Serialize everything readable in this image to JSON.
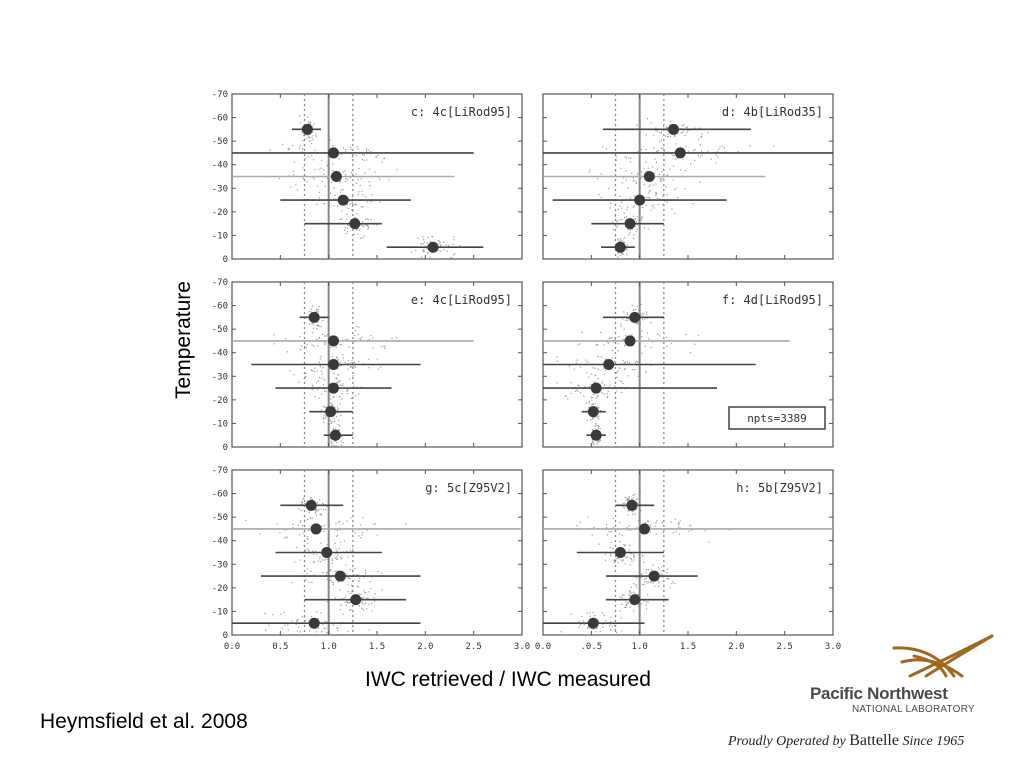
{
  "chart_data": {
    "type": "scatter",
    "ylabel": "Temperature",
    "xlabel": "IWC retrieved / IWC measured",
    "xlim": [
      0.0,
      3.0
    ],
    "ylim": [
      0,
      -70
    ],
    "x_ticks": [
      "0.0",
      "0.5",
      "1.0",
      "1.5",
      "2.0",
      "2.5",
      "3.0"
    ],
    "x_ticks_right": [
      "0.0",
      ".0.5",
      "1.0",
      "1.5",
      "2.0",
      "2.5",
      "3.0"
    ],
    "y_ticks": [
      "0",
      "-10",
      "-20",
      "-30",
      "-40",
      "-50",
      "-60",
      "-70"
    ],
    "reference_lines": {
      "solid_x": 1.0,
      "dotted_x": [
        0.75,
        1.25
      ]
    },
    "panels": [
      {
        "label": "c: 4c[LiRod95]",
        "points": [
          {
            "t": -55,
            "x": 0.78,
            "lo": 0.62,
            "hi": 0.92
          },
          {
            "t": -45,
            "x": 1.05,
            "lo": 0.0,
            "hi": 2.5
          },
          {
            "t": -35,
            "x": 1.08,
            "lo": 0.0,
            "hi": 2.3,
            "light": true
          },
          {
            "t": -25,
            "x": 1.15,
            "lo": 0.5,
            "hi": 1.85
          },
          {
            "t": -15,
            "x": 1.27,
            "lo": 0.75,
            "hi": 1.55
          },
          {
            "t": -5,
            "x": 2.08,
            "lo": 1.6,
            "hi": 2.6
          }
        ]
      },
      {
        "label": "d: 4b[LiRod35]",
        "points": [
          {
            "t": -55,
            "x": 1.35,
            "lo": 0.62,
            "hi": 2.15
          },
          {
            "t": -45,
            "x": 1.42,
            "lo": 0.0,
            "hi": 3.0
          },
          {
            "t": -35,
            "x": 1.1,
            "lo": 0.0,
            "hi": 2.3,
            "light": true
          },
          {
            "t": -25,
            "x": 1.0,
            "lo": 0.1,
            "hi": 1.9
          },
          {
            "t": -15,
            "x": 0.9,
            "lo": 0.5,
            "hi": 1.25
          },
          {
            "t": -5,
            "x": 0.8,
            "lo": 0.6,
            "hi": 0.95
          }
        ]
      },
      {
        "label": "e: 4c[LiRod95]",
        "points": [
          {
            "t": -55,
            "x": 0.85,
            "lo": 0.7,
            "hi": 1.0
          },
          {
            "t": -45,
            "x": 1.05,
            "lo": 0.0,
            "hi": 2.5,
            "light": true
          },
          {
            "t": -35,
            "x": 1.05,
            "lo": 0.2,
            "hi": 1.95
          },
          {
            "t": -25,
            "x": 1.05,
            "lo": 0.45,
            "hi": 1.65
          },
          {
            "t": -15,
            "x": 1.02,
            "lo": 0.8,
            "hi": 1.25
          },
          {
            "t": -5,
            "x": 1.07,
            "lo": 0.95,
            "hi": 1.25
          }
        ]
      },
      {
        "label": "f: 4d[LiRod95]",
        "points": [
          {
            "t": -55,
            "x": 0.95,
            "lo": 0.62,
            "hi": 1.25
          },
          {
            "t": -45,
            "x": 0.9,
            "lo": 0.0,
            "hi": 2.55,
            "light": true
          },
          {
            "t": -35,
            "x": 0.68,
            "lo": 0.0,
            "hi": 2.2
          },
          {
            "t": -25,
            "x": 0.55,
            "lo": 0.0,
            "hi": 1.8
          },
          {
            "t": -15,
            "x": 0.52,
            "lo": 0.4,
            "hi": 0.65
          },
          {
            "t": -5,
            "x": 0.55,
            "lo": 0.45,
            "hi": 0.65
          }
        ],
        "box": "npts=3389"
      },
      {
        "label": "g: 5c[Z95V2]",
        "points": [
          {
            "t": -55,
            "x": 0.82,
            "lo": 0.5,
            "hi": 1.15
          },
          {
            "t": -45,
            "x": 0.87,
            "lo": 0.0,
            "hi": 3.0,
            "light": true
          },
          {
            "t": -35,
            "x": 0.98,
            "lo": 0.45,
            "hi": 1.55
          },
          {
            "t": -25,
            "x": 1.12,
            "lo": 0.3,
            "hi": 1.95
          },
          {
            "t": -15,
            "x": 1.28,
            "lo": 0.75,
            "hi": 1.8
          },
          {
            "t": -5,
            "x": 0.85,
            "lo": 0.0,
            "hi": 1.95
          }
        ]
      },
      {
        "label": "h: 5b[Z95V2]",
        "points": [
          {
            "t": -55,
            "x": 0.92,
            "lo": 0.75,
            "hi": 1.15
          },
          {
            "t": -45,
            "x": 1.05,
            "lo": 0.0,
            "hi": 3.0,
            "light": true
          },
          {
            "t": -35,
            "x": 0.8,
            "lo": 0.35,
            "hi": 1.25
          },
          {
            "t": -25,
            "x": 1.15,
            "lo": 0.65,
            "hi": 1.6
          },
          {
            "t": -15,
            "x": 0.95,
            "lo": 0.65,
            "hi": 1.3
          },
          {
            "t": -5,
            "x": 0.52,
            "lo": 0.0,
            "hi": 1.05
          }
        ]
      }
    ]
  },
  "citation": "Heymsfield et al. 2008",
  "logo": {
    "name_line1": "Pacific Northwest",
    "name_line2": "NATIONAL LABORATORY",
    "tag_prefix": "Proudly Operated by",
    "tag_org": "Battelle",
    "tag_suffix": "Since 1965",
    "accent_color": "#a0681e"
  }
}
